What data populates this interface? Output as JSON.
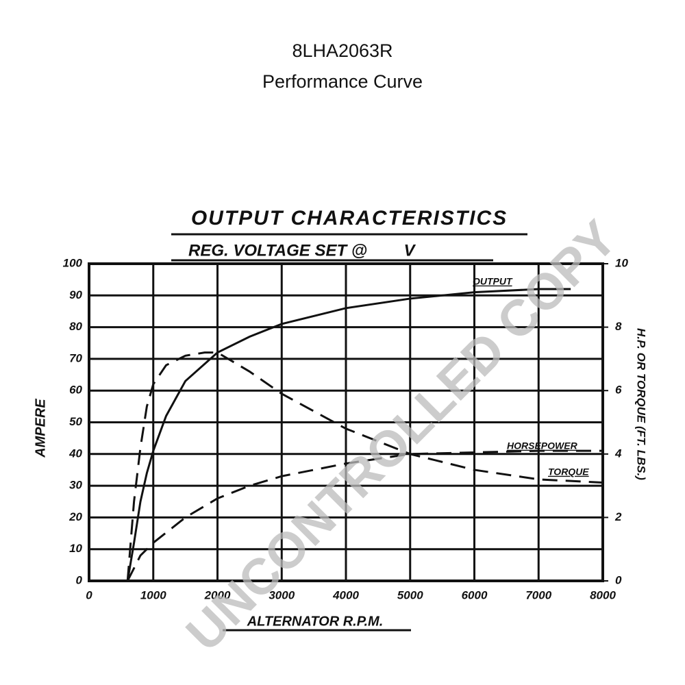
{
  "header": {
    "title": "8LHA2063R",
    "subtitle": "Performance Curve"
  },
  "watermark": "UNCONTROLLED COPY",
  "chart_data": {
    "type": "line",
    "title": "OUTPUT CHARACTERISTICS",
    "subtitle": "REG. VOLTAGE SET @        V",
    "x_label": "ALTERNATOR R.P.M.",
    "y_label": "AMPERE",
    "y2_label": "H.P. OR TORQUE (FT. LBS.)",
    "xlim": [
      0,
      8000
    ],
    "xticks": [
      0,
      1000,
      2000,
      3000,
      4000,
      5000,
      6000,
      7000,
      8000
    ],
    "ylim": [
      0,
      100
    ],
    "yticks": [
      0,
      10,
      20,
      30,
      40,
      50,
      60,
      70,
      80,
      90,
      100
    ],
    "y2lim": [
      0,
      10
    ],
    "y2ticks": [
      0,
      2,
      4,
      6,
      8,
      10
    ],
    "grid": true,
    "series": [
      {
        "name": "OUTPUT",
        "color": "#111111",
        "style": "solid",
        "x": [
          600,
          700,
          800,
          900,
          1000,
          1200,
          1500,
          2000,
          2500,
          3000,
          4000,
          5000,
          6000,
          7000,
          7500
        ],
        "values": [
          0,
          12,
          25,
          34,
          41,
          52,
          63,
          72,
          77,
          81,
          86,
          89,
          91,
          92,
          92
        ]
      },
      {
        "name": "HORSEPOWER",
        "color": "#111111",
        "style": "dashed",
        "axis": "y2",
        "x": [
          600,
          800,
          1000,
          1500,
          2000,
          2500,
          3000,
          4000,
          5000,
          6000,
          7000,
          8000
        ],
        "values": [
          0,
          0.8,
          1.2,
          2.0,
          2.6,
          3.0,
          3.3,
          3.7,
          4.0,
          4.05,
          4.1,
          4.1
        ]
      },
      {
        "name": "TORQUE",
        "color": "#111111",
        "style": "dashed",
        "axis": "y2",
        "x": [
          600,
          700,
          800,
          900,
          1000,
          1200,
          1500,
          1800,
          2000,
          2500,
          3000,
          4000,
          5000,
          6000,
          7000,
          8000
        ],
        "values": [
          0,
          2.5,
          4.2,
          5.5,
          6.2,
          6.8,
          7.1,
          7.2,
          7.2,
          6.6,
          5.9,
          4.8,
          4.0,
          3.5,
          3.2,
          3.1
        ]
      }
    ]
  }
}
